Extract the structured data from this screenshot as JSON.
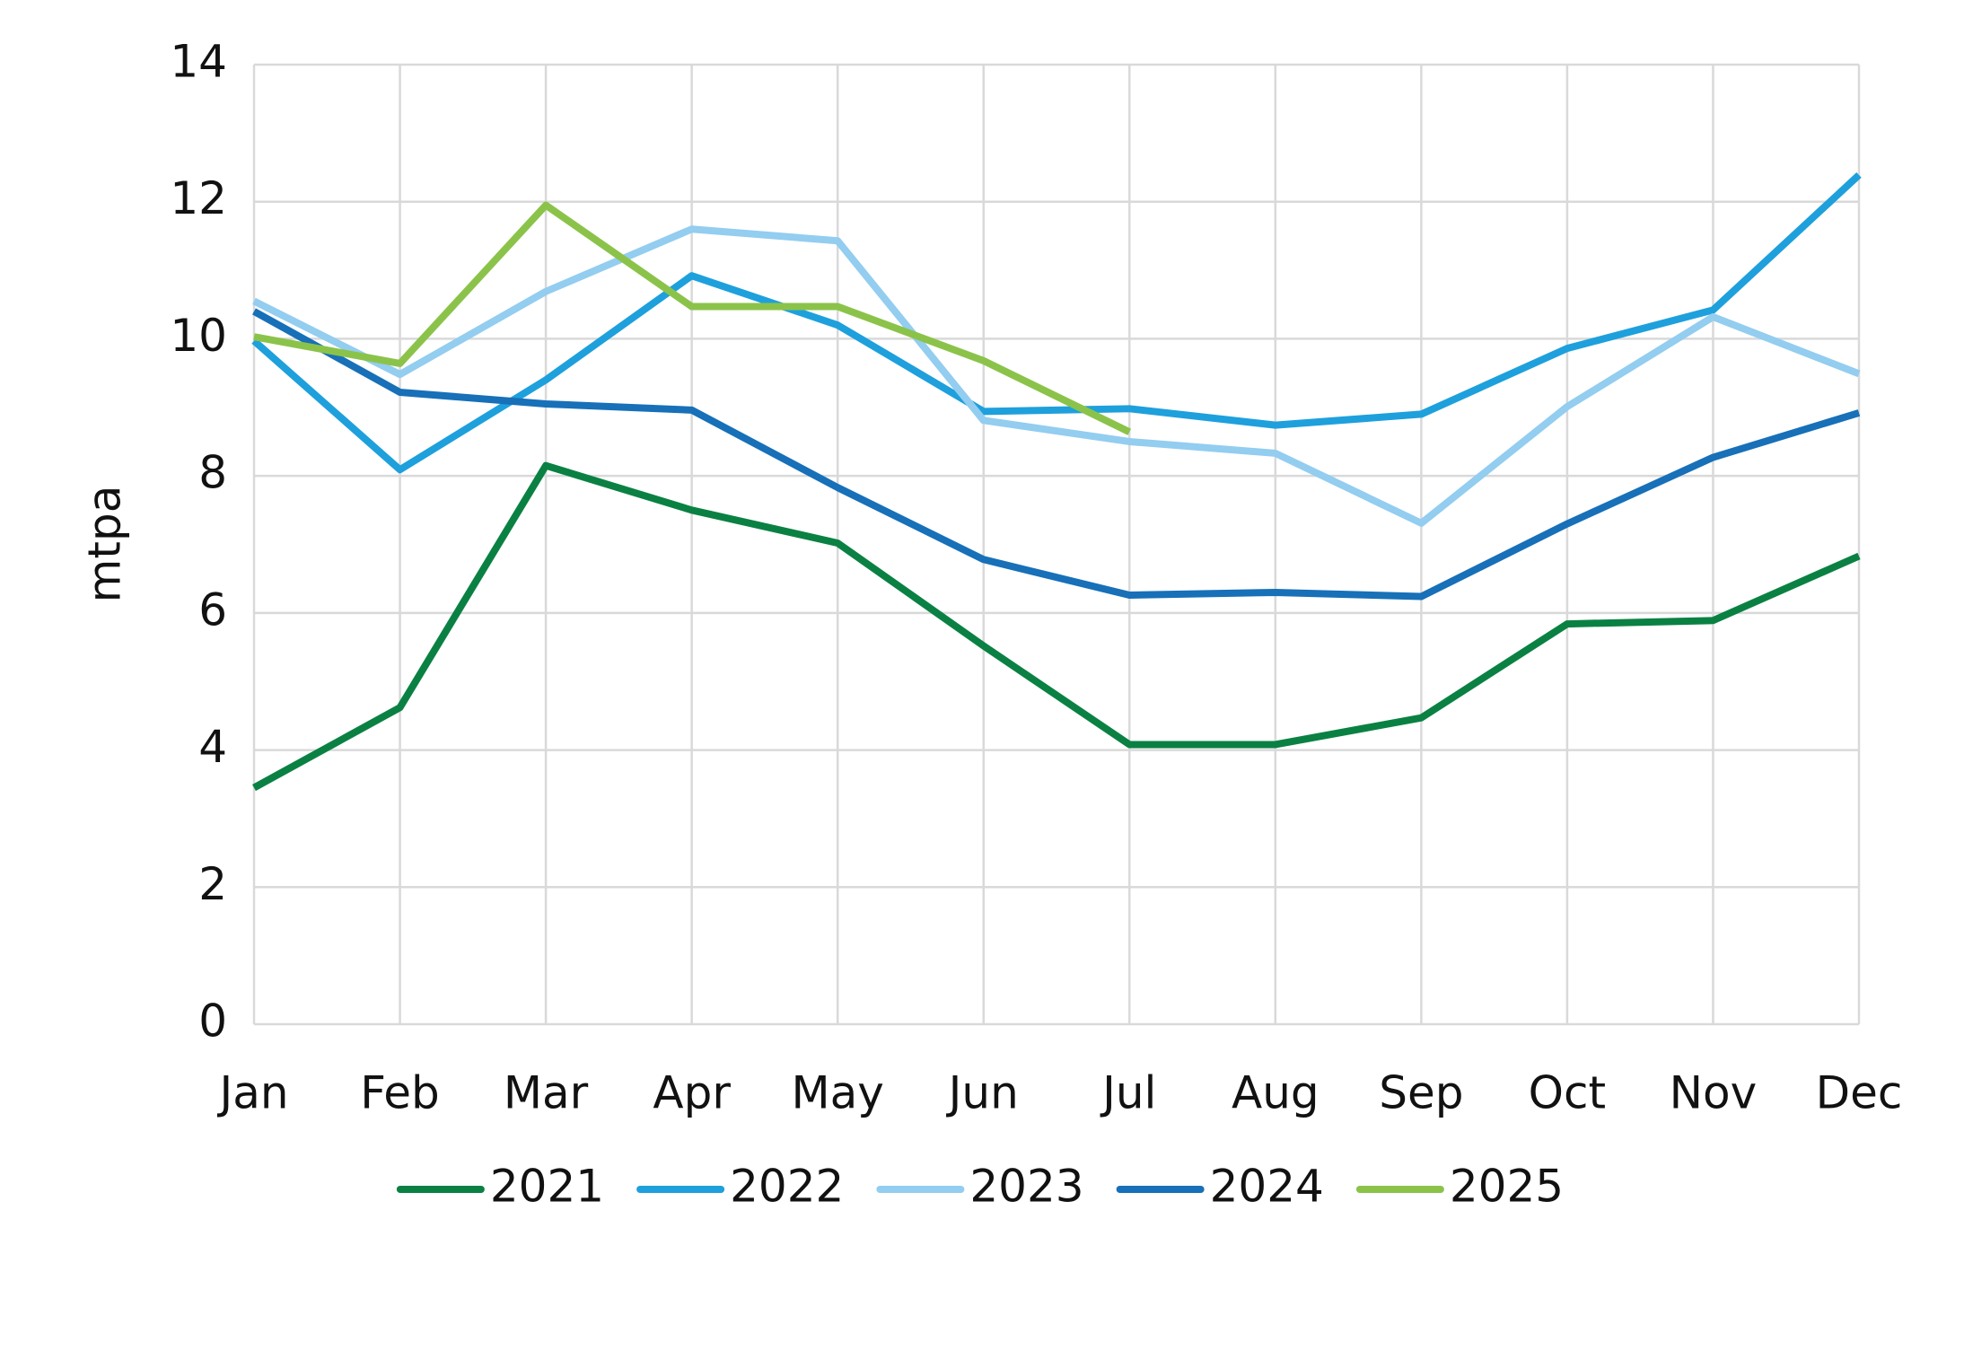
{
  "chart_data": {
    "type": "line",
    "y_label": "mtpa",
    "categories": [
      "Jan",
      "Feb",
      "Mar",
      "Apr",
      "May",
      "Jun",
      "Jul",
      "Aug",
      "Sep",
      "Oct",
      "Nov",
      "Dec"
    ],
    "series": [
      {
        "name": "2021",
        "color": "#0a8143",
        "values": [
          3.45,
          4.62,
          8.15,
          7.5,
          7.02,
          5.52,
          4.08,
          4.08,
          4.47,
          5.84,
          5.89,
          6.83
        ]
      },
      {
        "name": "2022",
        "color": "#1ea0dc",
        "values": [
          9.97,
          8.09,
          9.4,
          10.92,
          10.2,
          8.94,
          8.98,
          8.74,
          8.9,
          9.86,
          10.42,
          12.39
        ]
      },
      {
        "name": "2023",
        "color": "#93cdf0",
        "values": [
          10.55,
          9.48,
          10.69,
          11.6,
          11.43,
          8.81,
          8.5,
          8.33,
          7.31,
          9.01,
          10.32,
          9.49
        ]
      },
      {
        "name": "2024",
        "color": "#1770b8",
        "values": [
          10.4,
          9.22,
          9.05,
          8.96,
          7.83,
          6.78,
          6.26,
          6.3,
          6.24,
          7.3,
          8.27,
          8.92
        ]
      },
      {
        "name": "2025",
        "color": "#8bc34a",
        "values": [
          10.03,
          9.64,
          11.95,
          10.47,
          10.47,
          9.68,
          8.64,
          null,
          null,
          null,
          null,
          null
        ]
      }
    ],
    "ylim": [
      0,
      14
    ],
    "yticks": [
      0,
      2,
      4,
      6,
      8,
      10,
      12,
      14
    ],
    "grid": true,
    "legend": "bottom"
  }
}
